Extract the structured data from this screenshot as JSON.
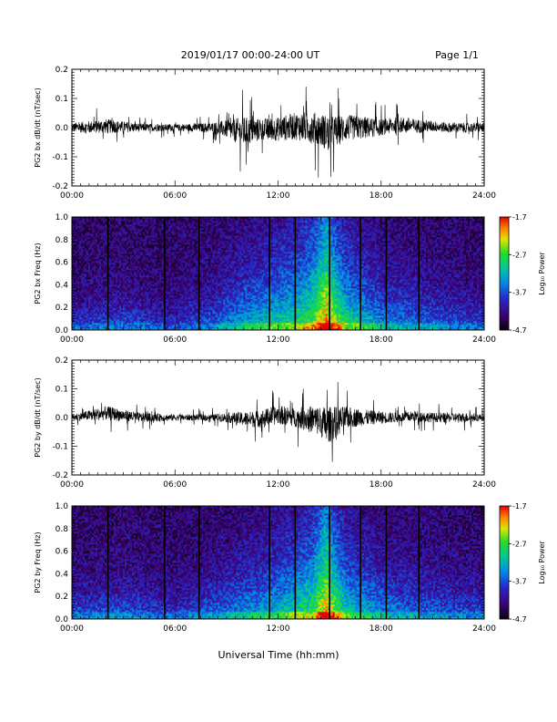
{
  "header": {
    "title": "2019/01/17  00:00-24:00 UT",
    "page": "Page 1/1"
  },
  "xlabel": "Universal Time (hh:mm)",
  "colorbar": {
    "label": "Log₁₀ Power",
    "ticks": [
      {
        "value": -1.7,
        "label": "-1.7"
      },
      {
        "value": -2.7,
        "label": "-2.7"
      },
      {
        "value": -3.7,
        "label": "-3.7"
      },
      {
        "value": -4.7,
        "label": "-4.7"
      }
    ],
    "range": [
      -4.7,
      -1.7
    ]
  },
  "chart_data": [
    {
      "type": "line",
      "ylabel": "PG2 bx dB/dt (nT/sec)",
      "xlim": [
        0,
        24
      ],
      "ylim": [
        -0.2,
        0.2
      ],
      "xticks": [
        {
          "value": 0,
          "label": "00:00"
        },
        {
          "value": 6,
          "label": "06:00"
        },
        {
          "value": 12,
          "label": "12:00"
        },
        {
          "value": 18,
          "label": "18:00"
        },
        {
          "value": 24,
          "label": "24:00"
        }
      ],
      "yticks": [
        {
          "value": 0.2,
          "label": "0.2"
        },
        {
          "value": 0.1,
          "label": "0.1"
        },
        {
          "value": 0.0,
          "label": "0.0"
        },
        {
          "value": -0.1,
          "label": "-0.1"
        },
        {
          "value": -0.2,
          "label": "-0.2"
        }
      ],
      "envelope": {
        "x": [
          0,
          2,
          4,
          6,
          8,
          9,
          10,
          11,
          12,
          13,
          14,
          15,
          16,
          17,
          18,
          19,
          20,
          21,
          22,
          23,
          24
        ],
        "max": [
          0.03,
          0.05,
          0.025,
          0.02,
          0.03,
          0.05,
          0.08,
          0.06,
          0.07,
          0.09,
          0.1,
          0.09,
          0.08,
          0.07,
          0.05,
          0.06,
          0.05,
          0.04,
          0.03,
          0.03,
          0.03
        ],
        "min": [
          -0.03,
          -0.04,
          -0.025,
          -0.02,
          -0.03,
          -0.06,
          -0.11,
          -0.07,
          -0.08,
          -0.08,
          -0.1,
          -0.13,
          -0.08,
          -0.07,
          -0.05,
          -0.04,
          -0.04,
          -0.03,
          -0.03,
          -0.03,
          -0.03
        ]
      }
    },
    {
      "type": "heatmap",
      "ylabel": "PG2 bx Freq (Hz)",
      "xlim": [
        0,
        24
      ],
      "ylim": [
        0.0,
        1.0
      ],
      "xticks": [
        {
          "value": 0,
          "label": "00:00"
        },
        {
          "value": 6,
          "label": "06:00"
        },
        {
          "value": 12,
          "label": "12:00"
        },
        {
          "value": 18,
          "label": "18:00"
        },
        {
          "value": 24,
          "label": "24:00"
        }
      ],
      "yticks": [
        {
          "value": 1.0,
          "label": "1.0"
        },
        {
          "value": 0.8,
          "label": "0.8"
        },
        {
          "value": 0.6,
          "label": "0.6"
        },
        {
          "value": 0.4,
          "label": "0.4"
        },
        {
          "value": 0.2,
          "label": "0.2"
        },
        {
          "value": 0.0,
          "label": "0.0"
        }
      ],
      "vlines": [
        2.1,
        5.4,
        7.4,
        11.5,
        13.0,
        15.0,
        16.8,
        18.3,
        20.2
      ],
      "intensity": {
        "x": [
          0,
          3,
          6,
          8,
          10,
          12,
          13,
          14,
          14.8,
          15.4,
          16,
          17,
          18,
          20,
          22,
          24
        ],
        "level": [
          0.25,
          0.28,
          0.22,
          0.3,
          0.45,
          0.55,
          0.6,
          0.7,
          0.95,
          0.75,
          0.6,
          0.5,
          0.4,
          0.35,
          0.3,
          0.25
        ],
        "reach": [
          0.15,
          0.2,
          0.15,
          0.25,
          0.4,
          0.5,
          0.55,
          0.7,
          1.0,
          0.7,
          0.55,
          0.45,
          0.35,
          0.3,
          0.25,
          0.2
        ]
      }
    },
    {
      "type": "line",
      "ylabel": "PG2 by dB/dt (nT/sec)",
      "xlim": [
        0,
        24
      ],
      "ylim": [
        -0.2,
        0.2
      ],
      "xticks": [
        {
          "value": 0,
          "label": "00:00"
        },
        {
          "value": 6,
          "label": "06:00"
        },
        {
          "value": 12,
          "label": "12:00"
        },
        {
          "value": 18,
          "label": "18:00"
        },
        {
          "value": 24,
          "label": "24:00"
        }
      ],
      "yticks": [
        {
          "value": 0.2,
          "label": "0.2"
        },
        {
          "value": 0.1,
          "label": "0.1"
        },
        {
          "value": 0.0,
          "label": "0.0"
        },
        {
          "value": -0.1,
          "label": "-0.1"
        },
        {
          "value": -0.2,
          "label": "-0.2"
        }
      ],
      "envelope": {
        "x": [
          0,
          2,
          4,
          6,
          8,
          9,
          10,
          11,
          12,
          13,
          14,
          15,
          16,
          17,
          18,
          19,
          20,
          21,
          22,
          23,
          24
        ],
        "max": [
          0.02,
          0.06,
          0.03,
          0.02,
          0.02,
          0.03,
          0.04,
          0.05,
          0.07,
          0.06,
          0.08,
          0.09,
          0.07,
          0.05,
          0.04,
          0.03,
          0.04,
          0.03,
          0.03,
          0.03,
          0.02
        ],
        "min": [
          -0.02,
          -0.03,
          -0.03,
          -0.02,
          -0.02,
          -0.03,
          -0.05,
          -0.06,
          -0.05,
          -0.06,
          -0.09,
          -0.14,
          -0.07,
          -0.05,
          -0.04,
          -0.03,
          -0.03,
          -0.03,
          -0.03,
          -0.03,
          -0.02
        ]
      }
    },
    {
      "type": "heatmap",
      "ylabel": "PG2 by Freq (Hz)",
      "xlim": [
        0,
        24
      ],
      "ylim": [
        0.0,
        1.0
      ],
      "xticks": [
        {
          "value": 0,
          "label": "00:00"
        },
        {
          "value": 6,
          "label": "06:00"
        },
        {
          "value": 12,
          "label": "12:00"
        },
        {
          "value": 18,
          "label": "18:00"
        },
        {
          "value": 24,
          "label": "24:00"
        }
      ],
      "yticks": [
        {
          "value": 1.0,
          "label": "1.0"
        },
        {
          "value": 0.8,
          "label": "0.8"
        },
        {
          "value": 0.6,
          "label": "0.6"
        },
        {
          "value": 0.4,
          "label": "0.4"
        },
        {
          "value": 0.2,
          "label": "0.2"
        },
        {
          "value": 0.0,
          "label": "0.0"
        }
      ],
      "vlines": [
        2.1,
        5.4,
        7.4,
        11.5,
        13.0,
        15.0,
        16.8,
        18.3,
        20.2
      ],
      "intensity": {
        "x": [
          0,
          3,
          6,
          8,
          10,
          12,
          13,
          14,
          14.8,
          15.4,
          16,
          17,
          18,
          20,
          22,
          24
        ],
        "level": [
          0.28,
          0.3,
          0.25,
          0.32,
          0.42,
          0.5,
          0.58,
          0.65,
          0.9,
          0.72,
          0.55,
          0.48,
          0.4,
          0.35,
          0.3,
          0.28
        ],
        "reach": [
          0.18,
          0.22,
          0.18,
          0.25,
          0.35,
          0.45,
          0.5,
          0.65,
          1.0,
          0.65,
          0.5,
          0.42,
          0.35,
          0.3,
          0.25,
          0.22
        ]
      }
    }
  ]
}
